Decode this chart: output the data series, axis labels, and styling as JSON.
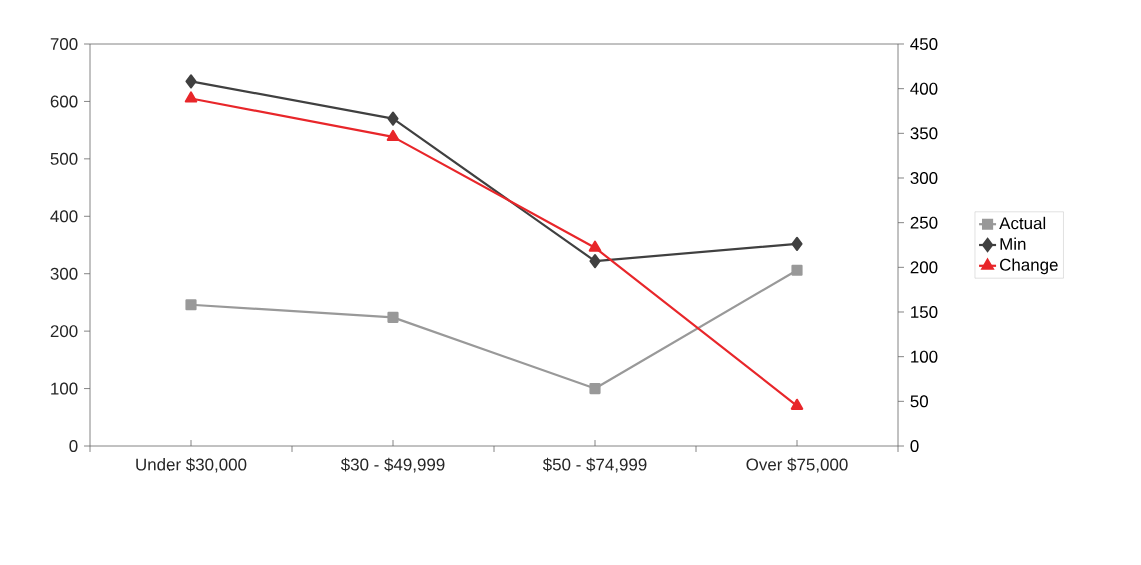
{
  "chart_data": {
    "type": "line",
    "categories": [
      "Under $30,000",
      "$30 - $49,999",
      "$50 - $74,999",
      "Over $75,000"
    ],
    "series": [
      {
        "name": "Actual",
        "color": "#999999",
        "marker": "square",
        "values": [
          246,
          224,
          100,
          306
        ]
      },
      {
        "name": "Min",
        "color": "#404040",
        "marker": "diamond",
        "values": [
          635,
          570,
          322,
          352
        ]
      },
      {
        "name": "Change",
        "color": "#e8262a",
        "marker": "triangle",
        "axis": "y2",
        "values": [
          389,
          346,
          222,
          45
        ]
      }
    ],
    "ylim": [
      0,
      700
    ],
    "yticks": [
      0,
      100,
      200,
      300,
      400,
      500,
      600,
      700
    ],
    "y2lim": [
      0,
      450
    ],
    "y2ticks": [
      0,
      50,
      100,
      150,
      200,
      250,
      300,
      350,
      400,
      450
    ],
    "grid": false,
    "legend": "right",
    "line_style": "solid"
  }
}
